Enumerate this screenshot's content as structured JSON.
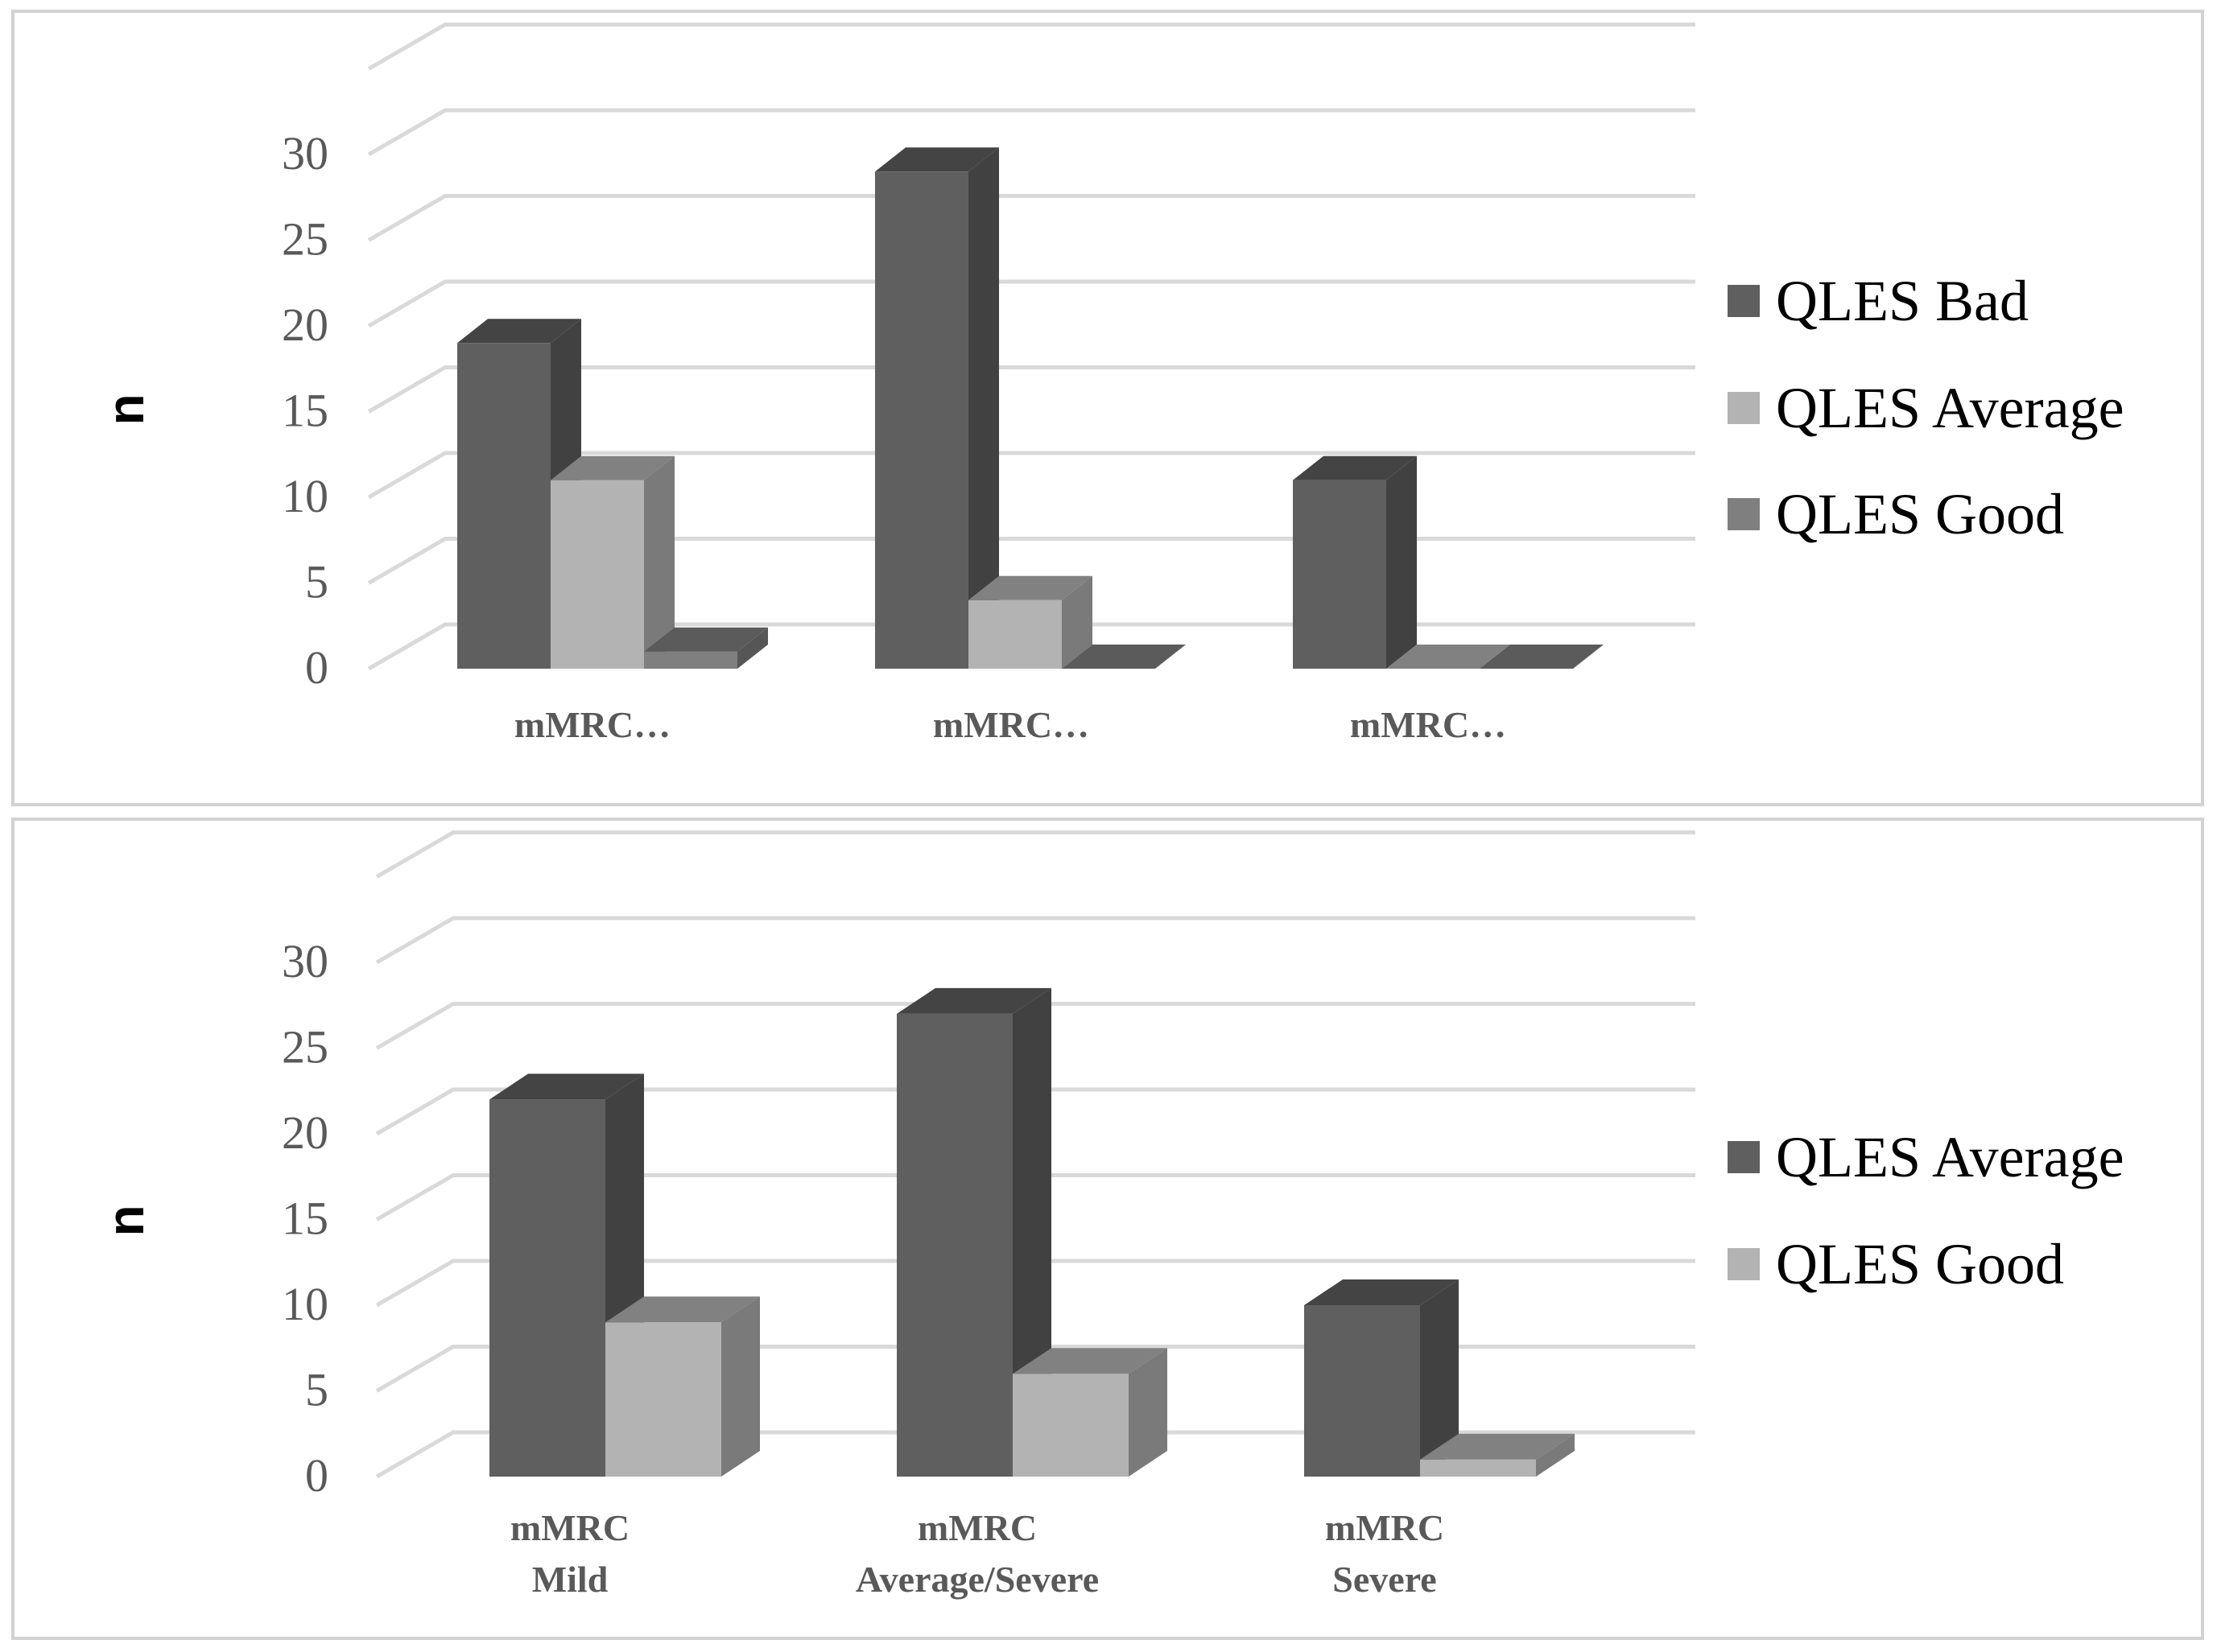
{
  "chart_data": [
    {
      "type": "bar",
      "ylabel": "n",
      "categories": [
        "mMRC…",
        "mMRC…",
        "mMRC…"
      ],
      "yticks": [
        "0",
        "5",
        "10",
        "15",
        "20",
        "25",
        "30"
      ],
      "ylim": [
        0,
        30
      ],
      "legend_position": "right",
      "grid": true,
      "series": [
        {
          "name": "QLES Bad",
          "color": "#5f5f5f",
          "values": [
            19,
            29,
            11
          ]
        },
        {
          "name": "QLES Average",
          "color": "#b3b3b3",
          "values": [
            11,
            4,
            0
          ]
        },
        {
          "name": "QLES Good",
          "color": "#7f7f7f",
          "values": [
            1,
            0,
            0
          ]
        }
      ]
    },
    {
      "type": "bar",
      "ylabel": "n",
      "categories": [
        [
          "mMRC",
          "Mild"
        ],
        [
          "mMRC",
          "Average/Severe"
        ],
        [
          "mMRC",
          "Severe"
        ]
      ],
      "yticks": [
        "0",
        "5",
        "10",
        "15",
        "20",
        "25",
        "30"
      ],
      "ylim": [
        0,
        30
      ],
      "legend_position": "right",
      "grid": true,
      "series": [
        {
          "name": "QLES Average",
          "color": "#5f5f5f",
          "values": [
            22,
            27,
            10
          ]
        },
        {
          "name": "QLES Good",
          "color": "#b3b3b3",
          "values": [
            9,
            6,
            1
          ]
        }
      ]
    }
  ]
}
